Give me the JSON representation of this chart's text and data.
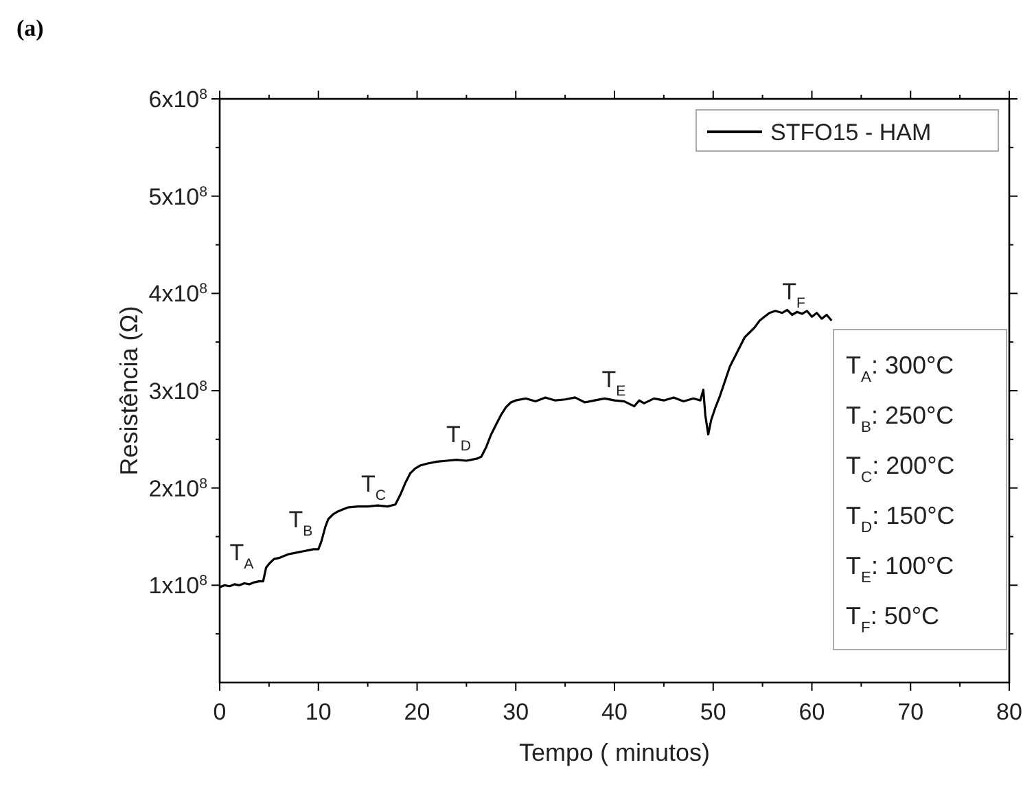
{
  "chart_data": {
    "type": "line",
    "title": "(a)",
    "xlabel": "Tempo  ( minutos)",
    "ylabel": "Resistência  (Ω)",
    "xlim": [
      0,
      80
    ],
    "ylim": [
      0,
      600000000
    ],
    "xticks": [
      0,
      {
        "value": 5,
        "label": null
      },
      10,
      {
        "value": 15,
        "label": null
      },
      20,
      {
        "value": 25,
        "label": null
      },
      30,
      {
        "value": 35,
        "label": null
      },
      40,
      {
        "value": 45,
        "label": null
      },
      50,
      {
        "value": 55,
        "label": null
      },
      60,
      {
        "value": 65,
        "label": null
      },
      70,
      {
        "value": 75,
        "label": null
      },
      80
    ],
    "yticks": [
      {
        "value": 50000000,
        "label": null
      },
      {
        "value": 100000000,
        "label": "1x10$^{8}$"
      },
      {
        "value": 150000000,
        "label": null
      },
      {
        "value": 200000000,
        "label": "2x10$^{8}$"
      },
      {
        "value": 250000000,
        "label": null
      },
      {
        "value": 300000000,
        "label": "3x10$^{8}$"
      },
      {
        "value": 350000000,
        "label": null
      },
      {
        "value": 400000000,
        "label": "4x10$^{8}$"
      },
      {
        "value": 450000000,
        "label": null
      },
      {
        "value": 500000000,
        "label": "5x10$^{8}$"
      },
      {
        "value": 550000000,
        "label": null
      },
      {
        "value": 600000000,
        "label": "6x10$^{8}$"
      }
    ],
    "legend": "top right",
    "grid": false,
    "line_style": "solid",
    "marker": "none",
    "series": [
      {
        "name": "STFO15 - HAM",
        "color": "#000000",
        "x": [
          0,
          0.5,
          1,
          1.5,
          2,
          2.5,
          3,
          3.5,
          4,
          4.4,
          4.7,
          5,
          5.5,
          6,
          6.5,
          7,
          7.5,
          8,
          8.5,
          9,
          9.5,
          10,
          10.3,
          10.7,
          11,
          11.5,
          12,
          12.5,
          13,
          14,
          15,
          16,
          17,
          17.8,
          18.3,
          18.8,
          19.3,
          19.8,
          20.3,
          21,
          22,
          23,
          24,
          25,
          26,
          26.5,
          27,
          27.5,
          28,
          28.5,
          29,
          29.5,
          30,
          31,
          32,
          33,
          34,
          35,
          36,
          37,
          38,
          39,
          40,
          41,
          42,
          42.5,
          43,
          44,
          45,
          46,
          47,
          48,
          48.7,
          49,
          49.2,
          49.5,
          49.8,
          50.2,
          50.7,
          51.2,
          51.7,
          52.2,
          52.7,
          53.2,
          53.7,
          54.2,
          54.7,
          55.2,
          55.7,
          56.3,
          57,
          57.5,
          58,
          58.5,
          59,
          59.5,
          60,
          60.5,
          61,
          61.5,
          62
        ],
        "values": [
          98000000,
          100000000,
          99000000,
          101000000,
          100000000,
          102000000,
          101000000,
          103000000,
          104000000,
          104000000,
          118000000,
          122000000,
          127000000,
          128000000,
          130000000,
          132000000,
          133000000,
          134000000,
          135000000,
          136000000,
          137000000,
          137000000,
          145000000,
          160000000,
          168000000,
          173000000,
          176000000,
          178000000,
          180000000,
          181000000,
          181000000,
          182000000,
          181000000,
          183000000,
          193000000,
          205000000,
          215000000,
          220000000,
          223000000,
          225000000,
          227000000,
          228000000,
          229000000,
          228000000,
          230000000,
          232000000,
          242000000,
          255000000,
          265000000,
          275000000,
          283000000,
          288000000,
          290000000,
          292000000,
          289000000,
          293000000,
          290000000,
          291000000,
          293000000,
          288000000,
          290000000,
          292000000,
          290000000,
          289000000,
          284000000,
          290000000,
          287000000,
          292000000,
          290000000,
          293000000,
          289000000,
          292000000,
          290000000,
          301000000,
          275000000,
          255000000,
          270000000,
          282000000,
          295000000,
          310000000,
          325000000,
          335000000,
          345000000,
          355000000,
          360000000,
          365000000,
          372000000,
          376000000,
          380000000,
          382000000,
          380000000,
          383000000,
          378000000,
          381000000,
          379000000,
          382000000,
          376000000,
          380000000,
          374000000,
          378000000,
          372000000
        ]
      }
    ],
    "annotations": [
      "T$_{A}$",
      "T$_{B}$",
      "T$_{C}$",
      "T$_{D}$",
      "T$_{E}$",
      "T$_{F}$",
      "T$_{A}$: 300°C",
      "T$_{B}$: 250°C",
      "T$_{C}$: 200°C",
      "T$_{D}$: 150°C",
      "T$_{E}$: 100°C",
      "T$_{F}$: 50°C"
    ]
  }
}
